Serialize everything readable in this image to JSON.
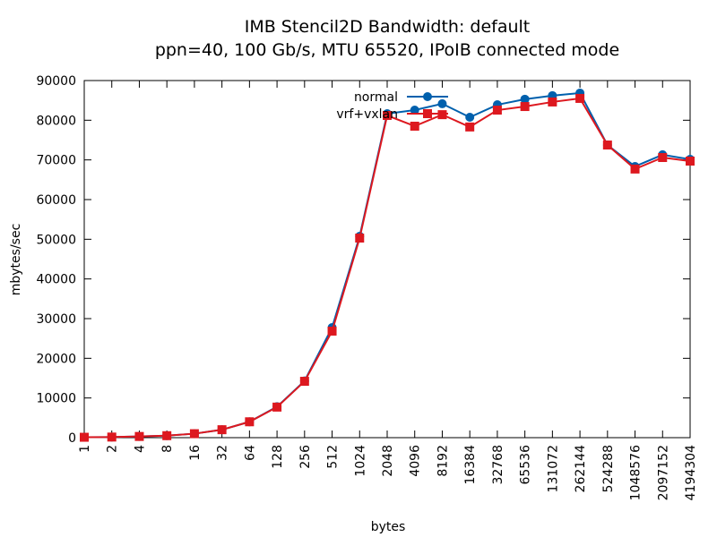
{
  "chart_data": {
    "type": "line",
    "title": "IMB Stencil2D Bandwidth: default",
    "subtitle": "ppn=40, 100 Gb/s, MTU 65520, IPoIB connected mode",
    "x_label": "bytes",
    "y_label": "mbytes/sec",
    "categories": [
      "1",
      "2",
      "4",
      "8",
      "16",
      "32",
      "64",
      "128",
      "256",
      "512",
      "1024",
      "2048",
      "4096",
      "8192",
      "16384",
      "32768",
      "65536",
      "131072",
      "262144",
      "524288",
      "1048576",
      "2097152",
      "4194304"
    ],
    "series": [
      {
        "name": "normal",
        "color": "#0060ad",
        "marker": "circle",
        "values": [
          100,
          150,
          300,
          500,
          1000,
          2000,
          4000,
          7800,
          14300,
          27750,
          50750,
          81650,
          82550,
          84150,
          80750,
          83900,
          85300,
          86200,
          86850,
          73750,
          68350,
          71300,
          70150
        ]
      },
      {
        "name": "vrf+vxlan",
        "color": "#dd181f",
        "marker": "square",
        "values": [
          100,
          150,
          300,
          500,
          1000,
          2000,
          4000,
          7700,
          14200,
          26850,
          50300,
          81200,
          78500,
          81400,
          78300,
          82550,
          83450,
          84600,
          85500,
          73750,
          67700,
          70600,
          69700
        ]
      }
    ],
    "ylim": [
      0,
      90000
    ],
    "yticks": [
      0,
      10000,
      20000,
      30000,
      40000,
      50000,
      60000,
      70000,
      80000,
      90000
    ],
    "legend": "top-center"
  }
}
